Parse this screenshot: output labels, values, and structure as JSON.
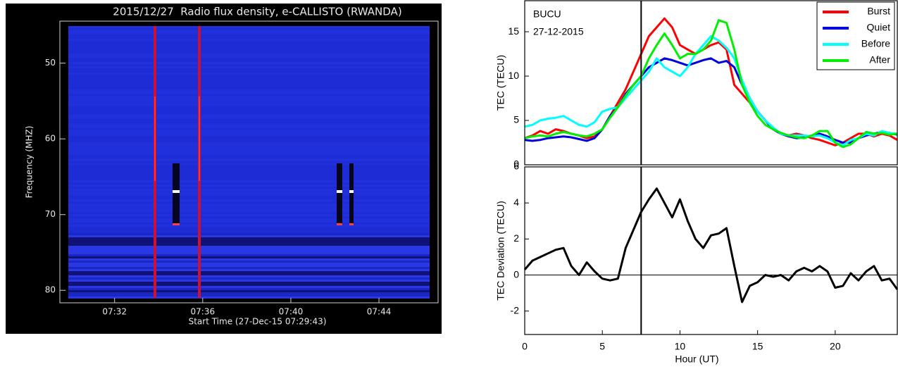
{
  "chart_data": [
    {
      "type": "spectrogram",
      "title": "2015/12/27  Radio flux density, e-CALLISTO (RWANDA)",
      "xlabel": "Start Time (27-Dec-15 07:29:43)",
      "ylabel": "Frequency (MHZ)",
      "xlim": [
        449.9,
        466.3
      ],
      "xticks": [
        {
          "value": 452,
          "label": "07:32"
        },
        {
          "value": 456,
          "label": "07:36"
        },
        {
          "value": 460,
          "label": "07:40"
        },
        {
          "value": 464,
          "label": "07:44"
        }
      ],
      "ylim": [
        81,
        45.1
      ],
      "yticks": [
        50,
        60,
        70,
        80
      ]
    },
    {
      "type": "line",
      "ylabel": "TEC (TECU)",
      "annotations": [
        "BUCU",
        "27-12-2015"
      ],
      "legend": "upper right",
      "xlim": [
        0,
        24
      ],
      "ylim": [
        0,
        18.5
      ],
      "yticks": [
        0,
        5,
        10,
        15
      ],
      "vline": 7.5,
      "x": [
        0,
        0.5,
        1,
        1.5,
        2,
        2.5,
        3,
        3.5,
        4,
        4.5,
        5,
        5.5,
        6,
        6.5,
        7,
        7.5,
        8,
        8.5,
        9,
        9.5,
        10,
        10.5,
        11,
        11.5,
        12,
        12.5,
        13,
        13.5,
        14,
        14.5,
        15,
        15.5,
        16,
        16.5,
        17,
        17.5,
        18,
        18.5,
        19,
        19.5,
        20,
        20.5,
        21,
        21.5,
        22,
        22.5,
        23,
        23.5,
        24
      ],
      "series": [
        {
          "name": "Burst",
          "color": "#ff0000",
          "values": [
            3,
            3.3,
            3.8,
            3.5,
            4,
            3.8,
            3.5,
            3.3,
            3,
            3.2,
            4,
            5.5,
            7,
            8.5,
            10.5,
            12.5,
            14.5,
            15.5,
            16.5,
            15.5,
            13.5,
            13,
            12.5,
            13,
            13.5,
            13.8,
            13,
            9,
            8,
            7,
            6,
            5,
            4,
            3.5,
            3.3,
            3.5,
            3.3,
            3,
            2.8,
            2.5,
            2.2,
            2.5,
            3,
            3.5,
            3.5,
            3.2,
            3.5,
            3.3,
            2.8
          ]
        },
        {
          "name": "Quiet",
          "color": "#0000dd",
          "values": [
            2.8,
            2.7,
            2.8,
            3,
            3.1,
            3.2,
            3.1,
            2.9,
            2.7,
            3,
            4,
            5.5,
            6.5,
            8,
            9,
            10,
            11,
            11.5,
            12,
            11.8,
            11.5,
            11.2,
            11.5,
            11.8,
            12,
            11.5,
            11.7,
            11,
            9,
            7.5,
            6,
            5,
            4,
            3.5,
            3.2,
            3,
            3.1,
            3.3,
            3.5,
            3.2,
            2.8,
            2.5,
            2.5,
            3,
            3.3,
            3.5,
            3.7,
            3.6,
            3.4
          ]
        },
        {
          "name": "Before",
          "color": "#00ffff",
          "values": [
            4.3,
            4.5,
            5,
            5.2,
            5.3,
            5.5,
            5,
            4.5,
            4.3,
            4.8,
            6,
            6.3,
            6.5,
            7.5,
            8.5,
            9.5,
            10.5,
            12,
            11,
            10.5,
            10,
            11,
            12.5,
            13.5,
            14.5,
            14,
            13.2,
            12,
            9.5,
            7.5,
            6,
            5,
            4.2,
            3.5,
            3.3,
            3.3,
            3.3,
            3.2,
            3.3,
            3,
            2.5,
            2.2,
            2.8,
            3,
            3.5,
            3.3,
            3.8,
            3.6,
            3.5
          ]
        },
        {
          "name": "After",
          "color": "#00ee00",
          "values": [
            3,
            3.2,
            3.3,
            3.2,
            3.5,
            3.7,
            3.5,
            3.3,
            3.2,
            3.5,
            4,
            5.3,
            6.5,
            7.8,
            9,
            10,
            12,
            13.5,
            14.8,
            13.5,
            12,
            12.5,
            12.5,
            13,
            14,
            16.3,
            16,
            13,
            9,
            7,
            5.5,
            4.5,
            4,
            3.6,
            3.3,
            3.1,
            3,
            3.3,
            3.8,
            3.8,
            2.5,
            2,
            2.3,
            3,
            3.7,
            3.5,
            3.6,
            3.4,
            3.5
          ]
        }
      ]
    },
    {
      "type": "line",
      "ylabel": "TEC Deviation (TECU)",
      "xlabel": "Hour (UT)",
      "xlim": [
        0,
        24
      ],
      "xticks": [
        0,
        5,
        10,
        15,
        20
      ],
      "ylim": [
        -3.3,
        6
      ],
      "yticks": [
        -2,
        0,
        2,
        4,
        6
      ],
      "vline": 7.5,
      "hline": 0,
      "x": [
        0,
        0.5,
        1,
        1.5,
        2,
        2.5,
        3,
        3.5,
        4,
        4.5,
        5,
        5.5,
        6,
        6.5,
        7,
        7.5,
        8,
        8.5,
        9,
        9.5,
        10,
        10.5,
        11,
        11.5,
        12,
        12.5,
        13,
        13.5,
        14,
        14.5,
        15,
        15.5,
        16,
        16.5,
        17,
        17.5,
        18,
        18.5,
        19,
        19.5,
        20,
        20.5,
        21,
        21.5,
        22,
        22.5,
        23,
        23.5,
        24
      ],
      "series": [
        {
          "color": "#000000",
          "values": [
            0.3,
            0.8,
            1,
            1.2,
            1.4,
            1.5,
            0.5,
            0,
            0.7,
            0.2,
            -0.2,
            -0.3,
            -0.2,
            1.5,
            2.5,
            3.5,
            4.2,
            4.8,
            4,
            3.2,
            4.2,
            3,
            2,
            1.5,
            2.2,
            2.3,
            2.6,
            0.5,
            -1.5,
            -0.6,
            -0.4,
            0,
            -0.1,
            0,
            -0.3,
            0.2,
            0.4,
            0.2,
            0.5,
            0.2,
            -0.7,
            -0.6,
            0.1,
            -0.3,
            0.2,
            0.5,
            -0.3,
            -0.2,
            -0.8
          ]
        }
      ]
    }
  ]
}
